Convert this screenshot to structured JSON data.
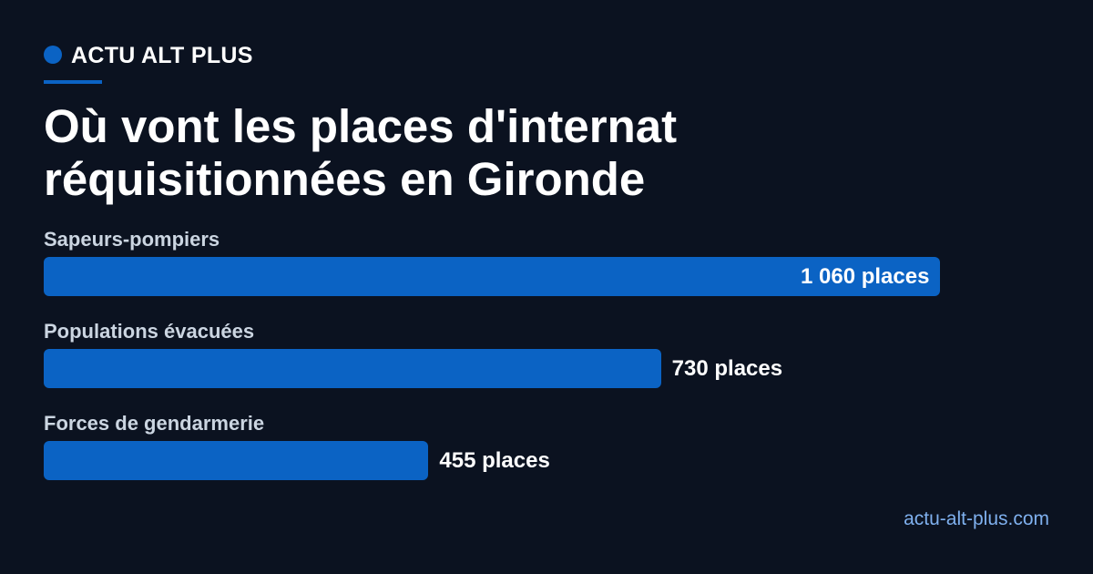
{
  "brand": "ACTU ALT PLUS",
  "footer": "actu-alt-plus.com",
  "chart_data": {
    "type": "bar",
    "orientation": "horizontal",
    "title": "Où vont les places d'internat réquisitionnées en Gironde",
    "categories": [
      "Sapeurs-pompiers",
      "Populations évacuées",
      "Forces de gendarmerie"
    ],
    "values": [
      1060,
      730,
      455
    ],
    "value_labels": [
      "1 060 places",
      "730 places",
      "455 places"
    ],
    "color": "#0b63c4"
  }
}
